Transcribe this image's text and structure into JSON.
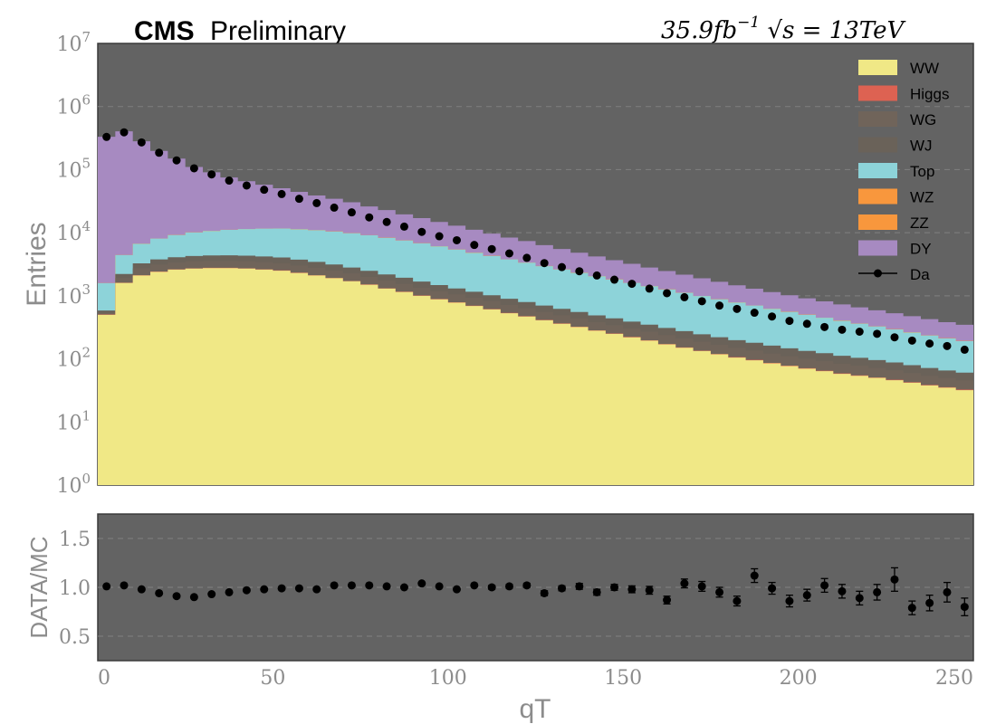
{
  "header": {
    "experiment": "CMS",
    "status": "Preliminary",
    "lumi": "35.9fb",
    "lumi_exp": "−1",
    "energy": "√s = 13TeV"
  },
  "colors": {
    "WW": "#f0e886",
    "Higgs": "#dd6252",
    "WG": "#70645a",
    "WJ": "#6a6259",
    "Top": "#8dd3d9",
    "WZ": "#f8973d",
    "ZZ": "#f8973d",
    "DY": "#a78ac1",
    "Data": "#000000",
    "background": "#636363"
  },
  "chart_data": [
    {
      "type": "area",
      "subtype": "stacked-step-histogram",
      "ylabel": "Entries",
      "yscale": "log",
      "ylim": [
        1,
        10000000
      ],
      "xlim": [
        0,
        250
      ],
      "ytick_exponents": [
        "0",
        "1",
        "2",
        "3",
        "4",
        "5",
        "6",
        "7"
      ],
      "grid": true,
      "legend": "top-right",
      "bin_width": 5,
      "x": [
        2.5,
        7.5,
        12.5,
        17.5,
        22.5,
        27.5,
        32.5,
        37.5,
        42.5,
        47.5,
        52.5,
        57.5,
        62.5,
        67.5,
        72.5,
        77.5,
        82.5,
        87.5,
        92.5,
        97.5,
        102.5,
        107.5,
        112.5,
        117.5,
        122.5,
        127.5,
        132.5,
        137.5,
        142.5,
        147.5,
        152.5,
        157.5,
        162.5,
        167.5,
        172.5,
        177.5,
        182.5,
        187.5,
        192.5,
        197.5,
        202.5,
        207.5,
        212.5,
        217.5,
        222.5,
        227.5,
        232.5,
        237.5,
        242.5,
        247.5
      ],
      "series": [
        {
          "name": "WW",
          "values": [
            500,
            1600,
            2100,
            2400,
            2600,
            2700,
            2750,
            2750,
            2700,
            2600,
            2500,
            2300,
            2100,
            1900,
            1700,
            1500,
            1300,
            1150,
            1000,
            880,
            780,
            690,
            610,
            530,
            470,
            410,
            360,
            320,
            280,
            250,
            220,
            195,
            170,
            150,
            133,
            118,
            105,
            95,
            85,
            77,
            70,
            64,
            58,
            54,
            50,
            46,
            42,
            38,
            35,
            32
          ]
        },
        {
          "name": "Higgs",
          "values": [
            5,
            15,
            20,
            25,
            28,
            30,
            30,
            30,
            29,
            28,
            27,
            25,
            23,
            21,
            19,
            17,
            15,
            13,
            11,
            10,
            9,
            8,
            7,
            6,
            5.5,
            5,
            4.5,
            4,
            3.6,
            3.2,
            2.9,
            2.6,
            2.3,
            2.1,
            1.9,
            1.7,
            1.5,
            1.4,
            1.3,
            1.2,
            1.1,
            1.0,
            0.9,
            0.85,
            0.8,
            0.75,
            0.7,
            0.65,
            0.6,
            0.55
          ]
        },
        {
          "name": "WG",
          "values": [
            40,
            300,
            600,
            700,
            750,
            800,
            800,
            800,
            800,
            780,
            760,
            700,
            650,
            600,
            540,
            480,
            430,
            380,
            330,
            290,
            260,
            230,
            205,
            180,
            160,
            142,
            126,
            112,
            100,
            90,
            80,
            72,
            65,
            58,
            52,
            47,
            43,
            39,
            35,
            32,
            29,
            27,
            25,
            23,
            21,
            19,
            17,
            15,
            14,
            13
          ]
        },
        {
          "name": "WJ",
          "values": [
            40,
            300,
            550,
            650,
            700,
            750,
            780,
            800,
            800,
            790,
            760,
            720,
            670,
            610,
            550,
            490,
            440,
            390,
            340,
            300,
            260,
            230,
            200,
            180,
            160,
            145,
            130,
            118,
            106,
            96,
            87,
            79,
            72,
            65,
            59,
            54,
            49,
            45,
            41,
            37,
            34,
            31,
            28,
            26,
            24,
            22,
            20,
            18,
            16,
            15
          ]
        },
        {
          "name": "Top",
          "values": [
            1000,
            2200,
            3400,
            4300,
            5100,
            5800,
            6300,
            6700,
            7100,
            7400,
            7600,
            7600,
            7500,
            7300,
            7000,
            6600,
            6100,
            5600,
            5100,
            4600,
            4100,
            3650,
            3250,
            2880,
            2550,
            2250,
            1990,
            1760,
            1550,
            1370,
            1210,
            1070,
            950,
            840,
            745,
            660,
            585,
            520,
            460,
            410,
            365,
            325,
            290,
            258,
            230,
            205,
            183,
            163,
            145,
            130
          ]
        },
        {
          "name": "WZ",
          "values": [
            2,
            8,
            15,
            20,
            25,
            28,
            30,
            32,
            33,
            33,
            33,
            32,
            31,
            30,
            28,
            26,
            24,
            22,
            20,
            18,
            16,
            14.5,
            13,
            12,
            11,
            10,
            9,
            8,
            7.3,
            6.6,
            6,
            5.5,
            5,
            4.5,
            4.1,
            3.7,
            3.4,
            3.1,
            2.8,
            2.6,
            2.4,
            2.2,
            2.0,
            1.8,
            1.7,
            1.6,
            1.5,
            1.4,
            1.3,
            1.2
          ]
        },
        {
          "name": "ZZ",
          "values": [
            1,
            4,
            7,
            9,
            11,
            12,
            13,
            14,
            14,
            14,
            14,
            13.5,
            13,
            12.5,
            12,
            11,
            10,
            9.3,
            8.5,
            7.8,
            7.1,
            6.5,
            5.9,
            5.4,
            4.9,
            4.5,
            4.1,
            3.7,
            3.4,
            3.1,
            2.8,
            2.6,
            2.4,
            2.2,
            2.0,
            1.8,
            1.7,
            1.55,
            1.4,
            1.3,
            1.2,
            1.1,
            1.0,
            0.93,
            0.86,
            0.8,
            0.74,
            0.68,
            0.63,
            0.58
          ]
        },
        {
          "name": "DY",
          "values": [
            330000,
            400000,
            275000,
            190000,
            140000,
            100000,
            80000,
            64000,
            54000,
            46000,
            39000,
            33000,
            28000,
            24000,
            20500,
            17000,
            14500,
            12000,
            10200,
            8700,
            7500,
            6300,
            5400,
            4600,
            4000,
            3400,
            2900,
            2500,
            2150,
            1850,
            1600,
            1380,
            1200,
            1040,
            900,
            780,
            680,
            590,
            520,
            460,
            410,
            365,
            325,
            290,
            260,
            235,
            210,
            190,
            170,
            155
          ]
        }
      ],
      "data": {
        "name": "Da",
        "values": [
          330000,
          390000,
          270000,
          185000,
          140000,
          105000,
          84000,
          67000,
          56000,
          48000,
          41000,
          34500,
          29500,
          25000,
          21000,
          17500,
          14800,
          12500,
          10300,
          8800,
          7600,
          6400,
          5500,
          4700,
          4000,
          3300,
          2850,
          2450,
          2100,
          1800,
          1550,
          1300,
          1100,
          950,
          820,
          700,
          620,
          540,
          470,
          400,
          360,
          320,
          290,
          270,
          250,
          220,
          195,
          175,
          160,
          140
        ]
      }
    },
    {
      "type": "scatter",
      "subtype": "ratio-with-errorbars",
      "xlabel": "qT",
      "ylabel": "DATA/MC",
      "xlim": [
        0,
        250
      ],
      "ylim": [
        0.25,
        1.75
      ],
      "xticks": [
        0,
        50,
        100,
        150,
        200,
        250
      ],
      "yticks": [
        0.5,
        1.0,
        1.5
      ],
      "ytick_labels": [
        "0.5",
        "1.0",
        "1.5"
      ],
      "grid": true,
      "x": [
        2.5,
        7.5,
        12.5,
        17.5,
        22.5,
        27.5,
        32.5,
        37.5,
        42.5,
        47.5,
        52.5,
        57.5,
        62.5,
        67.5,
        72.5,
        77.5,
        82.5,
        87.5,
        92.5,
        97.5,
        102.5,
        107.5,
        112.5,
        117.5,
        122.5,
        127.5,
        132.5,
        137.5,
        142.5,
        147.5,
        152.5,
        157.5,
        162.5,
        167.5,
        172.5,
        177.5,
        182.5,
        187.5,
        192.5,
        197.5,
        202.5,
        207.5,
        212.5,
        217.5,
        222.5,
        227.5,
        232.5,
        237.5,
        242.5,
        247.5
      ],
      "y": [
        1.01,
        1.02,
        0.98,
        0.94,
        0.91,
        0.9,
        0.93,
        0.95,
        0.97,
        0.98,
        0.99,
        0.99,
        0.98,
        1.02,
        1.02,
        1.02,
        1.01,
        1.0,
        1.04,
        1.01,
        0.98,
        1.02,
        1.0,
        1.01,
        1.02,
        0.94,
        0.99,
        1.01,
        0.95,
        1.0,
        0.98,
        0.97,
        0.87,
        1.04,
        1.01,
        0.95,
        0.86,
        1.12,
        0.99,
        0.86,
        0.92,
        1.02,
        0.96,
        0.89,
        0.95,
        1.08,
        0.79,
        0.84,
        0.95,
        0.8
      ],
      "yerr": [
        0.01,
        0.01,
        0.01,
        0.01,
        0.01,
        0.01,
        0.01,
        0.01,
        0.01,
        0.01,
        0.01,
        0.01,
        0.01,
        0.01,
        0.01,
        0.01,
        0.01,
        0.01,
        0.015,
        0.015,
        0.015,
        0.015,
        0.02,
        0.02,
        0.02,
        0.025,
        0.025,
        0.03,
        0.03,
        0.03,
        0.035,
        0.04,
        0.04,
        0.045,
        0.05,
        0.05,
        0.05,
        0.07,
        0.06,
        0.06,
        0.06,
        0.07,
        0.07,
        0.07,
        0.08,
        0.12,
        0.07,
        0.08,
        0.1,
        0.09
      ]
    }
  ]
}
